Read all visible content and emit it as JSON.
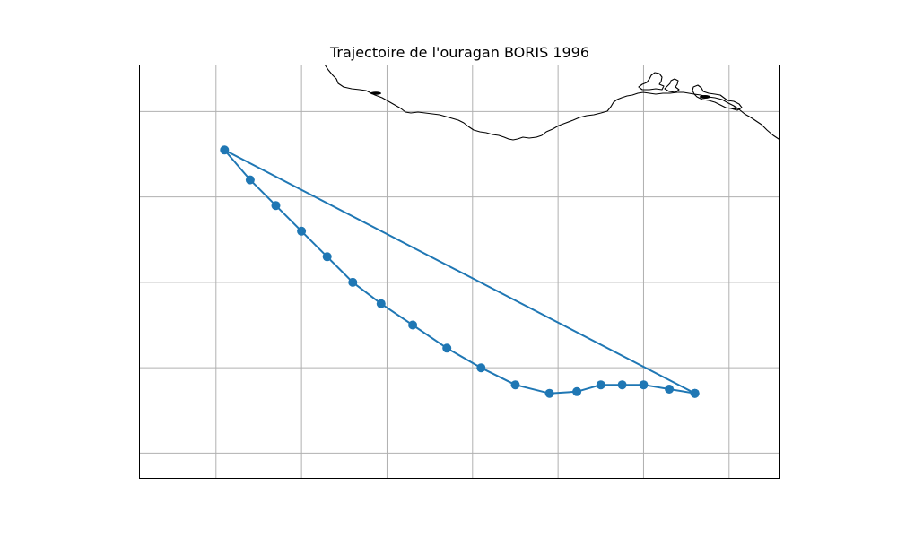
{
  "chart_data": {
    "type": "line",
    "title": "Trajectoire de l'ouragan BORIS 1996",
    "x": [
      -94.4,
      -94.7,
      -95.0,
      -95.25,
      -95.5,
      -95.78,
      -96.1,
      -96.5,
      -96.9,
      -97.3,
      -97.7,
      -98.07,
      -98.4,
      -98.7,
      -99.0,
      -99.3,
      -99.6,
      -99.9,
      -94.4
    ],
    "y": [
      12.7,
      12.75,
      12.8,
      12.8,
      12.8,
      12.72,
      12.7,
      12.8,
      13.0,
      13.23,
      13.5,
      13.75,
      14.0,
      14.3,
      14.6,
      14.9,
      15.2,
      15.55,
      12.7
    ],
    "xlim": [
      -100.9,
      -93.4
    ],
    "ylim": [
      11.7,
      16.55
    ],
    "grid": true,
    "marker": "circle",
    "color": "#1f77b4",
    "grid_color": "#b0b0b0",
    "coastline_color": "#000000"
  }
}
